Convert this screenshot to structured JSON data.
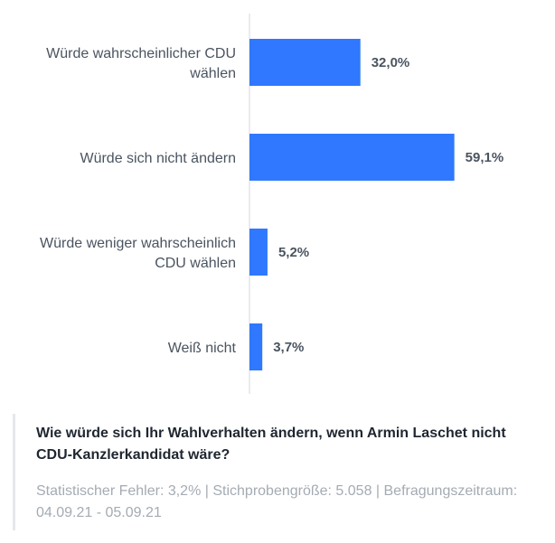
{
  "chart_data": {
    "type": "bar",
    "orientation": "horizontal",
    "categories": [
      [
        "Würde wahrscheinlicher CDU",
        "wählen"
      ],
      [
        "Würde sich nicht ändern"
      ],
      [
        "Würde weniger wahrscheinlich",
        "CDU wählen"
      ],
      [
        "Weiß nicht"
      ]
    ],
    "values": [
      32.0,
      59.1,
      5.2,
      3.7
    ],
    "value_labels": [
      "32,0%",
      "59,1%",
      "5,2%",
      "3,7%"
    ],
    "xlim": [
      0,
      100
    ],
    "grid": false,
    "bar_color": "#2f78ff"
  },
  "footer": {
    "title": "Wie würde sich Ihr Wahlverhalten ändern, wenn Armin Laschet nicht CDU-Kanzlerkandidat wäre?",
    "subtitle": "Statistischer Fehler: 3,2% | Stichprobengröße: 5.058 | Befragungszeitraum: 04.09.21 - 05.09.21"
  }
}
